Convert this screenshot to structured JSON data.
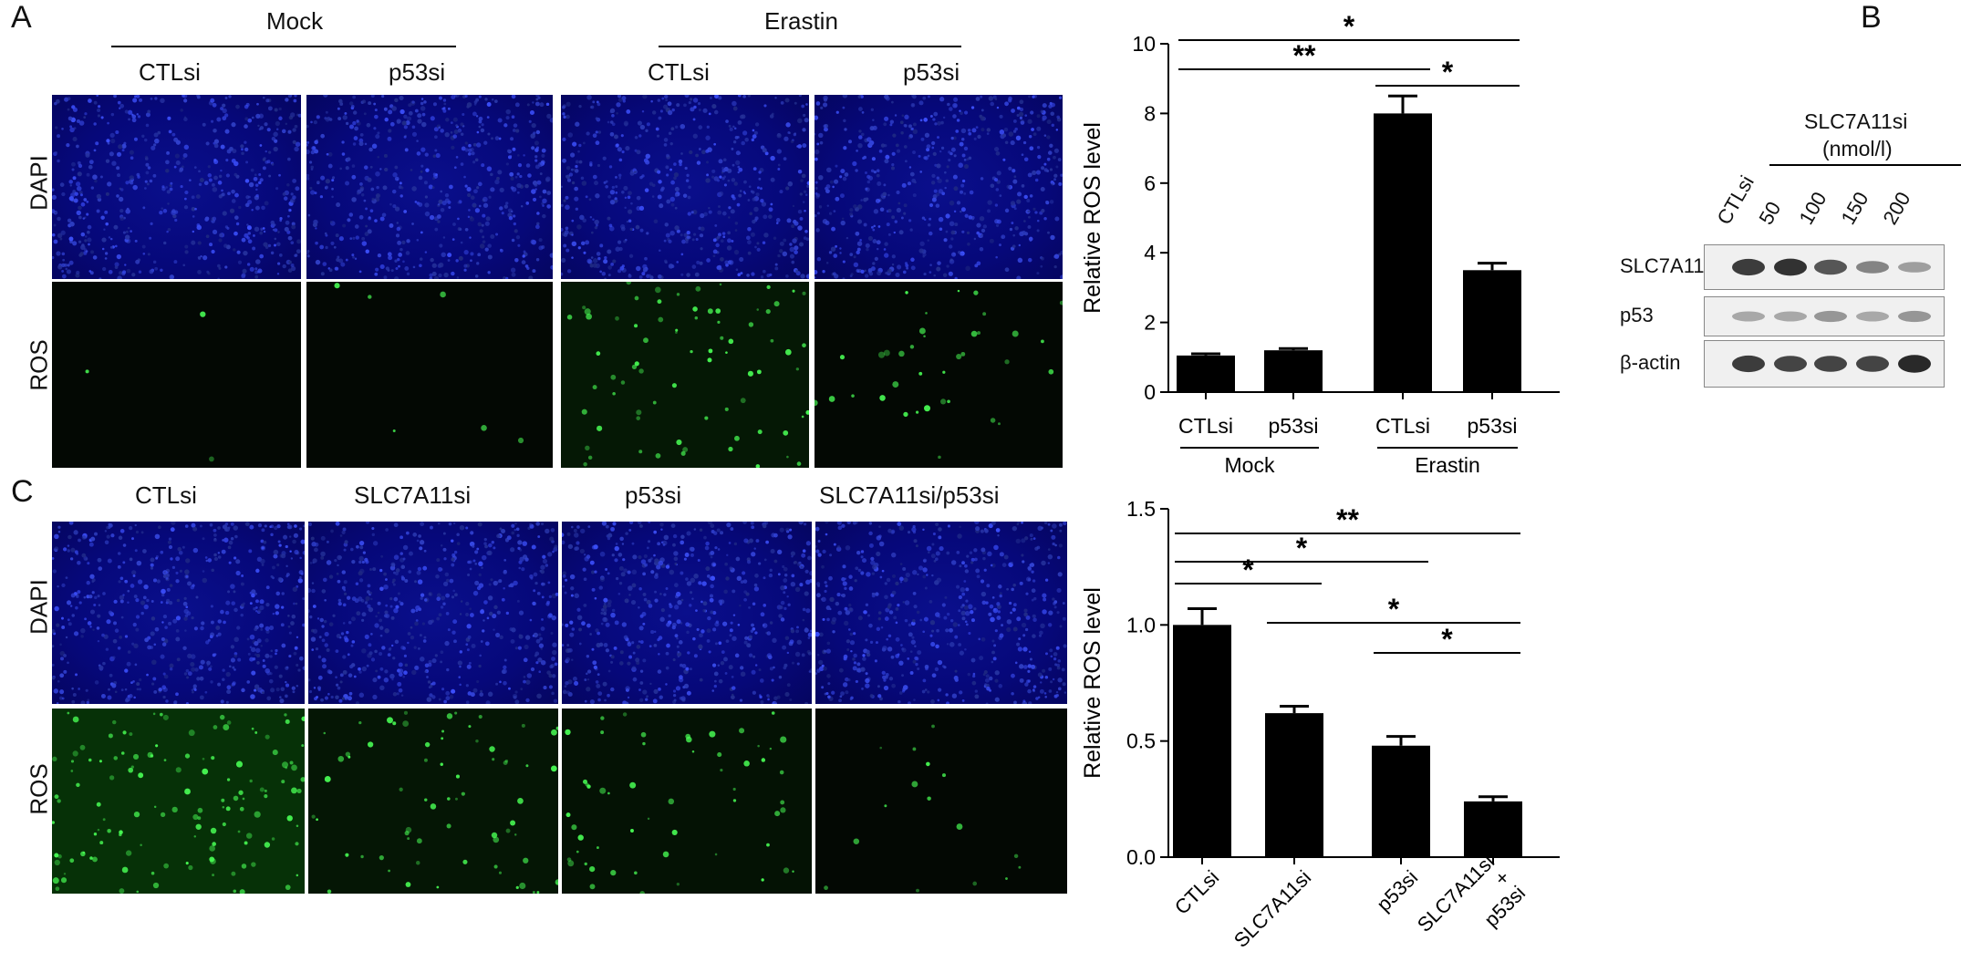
{
  "panels": {
    "A": {
      "letter": "A",
      "groups": [
        "Mock",
        "Erastin"
      ],
      "columns": [
        "CTLsi",
        "p53si",
        "CTLsi",
        "p53si"
      ],
      "rows": [
        "DAPI",
        "ROS"
      ],
      "ros_intensity": [
        0.0,
        0.02,
        0.55,
        0.25
      ]
    },
    "B": {
      "letter": "B",
      "header_line1": "SLC7A11si",
      "header_line2": "(nmol/l)",
      "lanes": [
        "CTLsi",
        "50",
        "100",
        "150",
        "200"
      ],
      "proteins": [
        "SLC7A11",
        "p53",
        "β-actin"
      ],
      "band_intensity": {
        "SLC7A11": [
          0.85,
          0.9,
          0.7,
          0.45,
          0.3
        ],
        "p53": [
          0.25,
          0.25,
          0.35,
          0.25,
          0.35
        ],
        "beta_actin": [
          0.85,
          0.8,
          0.8,
          0.8,
          0.95
        ]
      }
    },
    "C": {
      "letter": "C",
      "columns": [
        "CTLsi",
        "SLC7A11si",
        "p53si",
        "SLC7A11si/p53si"
      ],
      "rows": [
        "DAPI",
        "ROS"
      ],
      "ros_intensity": [
        1.0,
        0.5,
        0.4,
        0.1
      ]
    }
  },
  "chart_data": [
    {
      "type": "bar",
      "panel": "A",
      "categories": [
        "CTLsi",
        "p53si",
        "CTLsi",
        "p53si"
      ],
      "groups": [
        {
          "label": "Mock",
          "members": [
            0,
            1
          ]
        },
        {
          "label": "Erastin",
          "members": [
            2,
            3
          ]
        }
      ],
      "values": [
        1.05,
        1.2,
        8.0,
        3.5
      ],
      "errors": [
        0.05,
        0.05,
        0.5,
        0.2
      ],
      "ylabel": "Relative ROS level",
      "ylim": [
        0,
        10
      ],
      "yticks": [
        "0",
        "2",
        "4",
        "6",
        "8",
        "10"
      ],
      "yticks_values": [
        0,
        2,
        4,
        6,
        8,
        10
      ],
      "significance": [
        {
          "from": 0,
          "to": 3,
          "label": "*"
        },
        {
          "from": 0,
          "to": 2,
          "label": "**"
        },
        {
          "from": 2,
          "to": 3,
          "label": "*"
        }
      ]
    },
    {
      "type": "bar",
      "panel": "C",
      "categories": [
        "CTLsi",
        "SLC7A11si",
        "p53si",
        "SLC7A11si\n+\np53si"
      ],
      "values": [
        1.0,
        0.62,
        0.48,
        0.24
      ],
      "errors": [
        0.07,
        0.03,
        0.04,
        0.02
      ],
      "ylabel": "Relative ROS level",
      "ylim": [
        0,
        1.5
      ],
      "yticks": [
        "0.0",
        "0.5",
        "1.0",
        "1.5"
      ],
      "yticks_values": [
        0,
        0.5,
        1.0,
        1.5
      ],
      "significance": [
        {
          "from": 0,
          "to": 3,
          "label": "**"
        },
        {
          "from": 0,
          "to": 2,
          "label": "*"
        },
        {
          "from": 0,
          "to": 1,
          "label": "*"
        },
        {
          "from": 1,
          "to": 3,
          "label": "*"
        },
        {
          "from": 2,
          "to": 3,
          "label": "*"
        }
      ]
    }
  ]
}
